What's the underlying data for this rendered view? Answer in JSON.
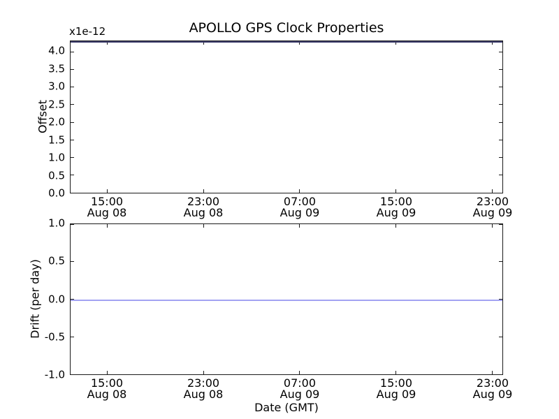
{
  "figure": {
    "title": "APOLLO GPS Clock Properties",
    "background_color": "#ffffff",
    "frame_color": "#1a1a1a",
    "text_color": "#000000"
  },
  "chart_data": [
    {
      "type": "line",
      "title": "APOLLO GPS Clock Properties",
      "ylabel": "Offset",
      "y_offset_multiplier": "x1e-12",
      "ylim": [
        0.0,
        4.3
      ],
      "grid": false,
      "legend": "none",
      "yticks": [
        {
          "value": 4.0,
          "label": "4.0"
        },
        {
          "value": 3.5,
          "label": "3.5"
        },
        {
          "value": 3.0,
          "label": "3.0"
        },
        {
          "value": 2.5,
          "label": "2.5"
        },
        {
          "value": 2.0,
          "label": "2.0"
        },
        {
          "value": 1.5,
          "label": "1.5"
        },
        {
          "value": 1.0,
          "label": "1.0"
        },
        {
          "value": 0.5,
          "label": "0.5"
        },
        {
          "value": 0.0,
          "label": "0.0"
        }
      ],
      "xticks": [
        {
          "frac": 0.0855,
          "time": "15:00",
          "date": "Aug 08"
        },
        {
          "frac": 0.3081,
          "time": "23:00",
          "date": "Aug 08"
        },
        {
          "frac": 0.5306,
          "time": "07:00",
          "date": "Aug 09"
        },
        {
          "frac": 0.7532,
          "time": "15:00",
          "date": "Aug 09"
        },
        {
          "frac": 0.9758,
          "time": "23:00",
          "date": "Aug 09"
        }
      ],
      "series": [
        {
          "name": "offset",
          "color": "#3a3a6b",
          "value": 4.3,
          "description": "constant horizontal line along the top edge of the plot"
        }
      ]
    },
    {
      "type": "line",
      "ylabel": "Drift (per day)",
      "xlabel": "Date (GMT)",
      "ylim": [
        -1.0,
        1.0
      ],
      "grid": false,
      "legend": "none",
      "yticks": [
        {
          "value": 1.0,
          "label": "1.0"
        },
        {
          "value": 0.5,
          "label": "0.5"
        },
        {
          "value": 0.0,
          "label": "0.0"
        },
        {
          "value": -0.5,
          "label": "-0.5"
        },
        {
          "value": -1.0,
          "label": "-1.0"
        }
      ],
      "xticks": [
        {
          "frac": 0.0855,
          "time": "15:00",
          "date": "Aug 08"
        },
        {
          "frac": 0.3081,
          "time": "23:00",
          "date": "Aug 08"
        },
        {
          "frac": 0.5306,
          "time": "07:00",
          "date": "Aug 09"
        },
        {
          "frac": 0.7532,
          "time": "15:00",
          "date": "Aug 09"
        },
        {
          "frac": 0.9758,
          "time": "23:00",
          "date": "Aug 09"
        }
      ],
      "series": [
        {
          "name": "drift",
          "color": "#a3a3f2",
          "value": 0.0,
          "description": "constant horizontal line at 0.0"
        }
      ]
    }
  ]
}
